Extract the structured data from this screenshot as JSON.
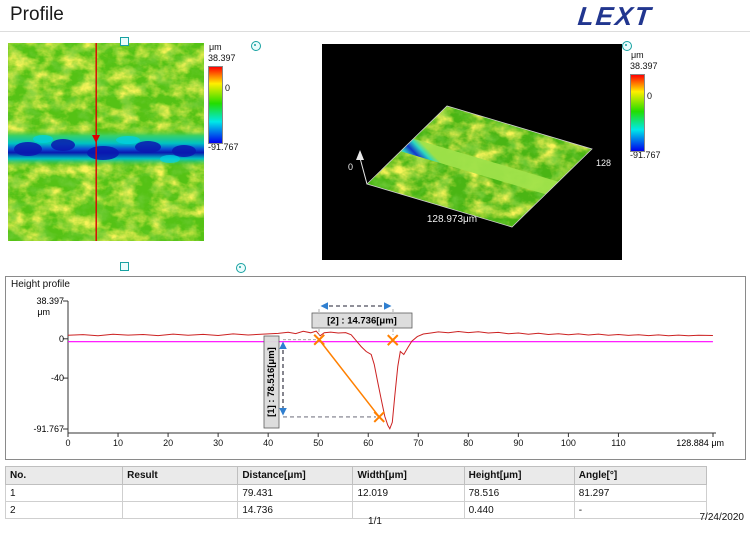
{
  "header": {
    "title": "Profile",
    "logo": "LEXT"
  },
  "colorbar2d": {
    "unit": "μm",
    "max": "38.397",
    "zero": "0",
    "min": "-91.767"
  },
  "colorbar3d": {
    "unit": "μm",
    "max": "38.397",
    "zero": "0",
    "min": "-91.767"
  },
  "view3d": {
    "axis_origin": "0",
    "axis_right": "128",
    "axis_bottom": "128.973μm"
  },
  "chart": {
    "title": "Height profile",
    "y_max": "38.397",
    "y_unit": "μm",
    "y_zero": "0",
    "y_mid": "-40",
    "y_min": "-91.767",
    "x_end": "128.884 μm",
    "measure1": "[1] : 78.516[μm]",
    "measure2": "[2] : 14.736[μm]"
  },
  "chart_data": {
    "type": "line",
    "title": "Height profile",
    "ylabel": "μm",
    "ylim": [
      -91.767,
      38.397
    ],
    "xlim": [
      0,
      128.884
    ],
    "x_ticks": [
      0,
      10,
      20,
      30,
      40,
      50,
      60,
      70,
      80,
      90,
      100,
      110
    ],
    "x_end_value": 128.884,
    "grid": false,
    "series": [
      {
        "name": "height-profile",
        "color": "#cc2222",
        "points": [
          [
            0,
            3.5
          ],
          [
            3,
            4.2
          ],
          [
            6,
            3.1
          ],
          [
            9,
            4.6
          ],
          [
            12,
            3.7
          ],
          [
            15,
            4.3
          ],
          [
            18,
            3.2
          ],
          [
            21,
            4.7
          ],
          [
            24,
            3.5
          ],
          [
            27,
            4.4
          ],
          [
            30,
            3.3
          ],
          [
            33,
            4.9
          ],
          [
            36,
            3.8
          ],
          [
            39,
            4.7
          ],
          [
            42,
            5.4
          ],
          [
            44,
            6.6
          ],
          [
            45.5,
            5.2
          ],
          [
            47,
            7.6
          ],
          [
            48.5,
            6.1
          ],
          [
            49.6,
            7.8
          ],
          [
            50.4,
            3.0
          ],
          [
            51.2,
            6.2
          ],
          [
            52.5,
            6.8
          ],
          [
            54,
            5.9
          ],
          [
            55.5,
            6.3
          ],
          [
            56.6,
            4.0
          ],
          [
            57.6,
            -2
          ],
          [
            58.6,
            -8
          ],
          [
            59.6,
            -13
          ],
          [
            60.6,
            -16
          ],
          [
            61.2,
            -26
          ],
          [
            61.9,
            -44
          ],
          [
            62.6,
            -62
          ],
          [
            63.3,
            -79
          ],
          [
            63.9,
            -88
          ],
          [
            64.3,
            -91.5
          ],
          [
            64.8,
            -85
          ],
          [
            65.3,
            -58
          ],
          [
            65.9,
            -28
          ],
          [
            66.4,
            -13
          ],
          [
            67.1,
            -16
          ],
          [
            67.9,
            -9
          ],
          [
            68.7,
            -2.5
          ],
          [
            69.8,
            2.2
          ],
          [
            71,
            4.8
          ],
          [
            72.5,
            5.9
          ],
          [
            74,
            7
          ],
          [
            76,
            6.1
          ],
          [
            78,
            7.4
          ],
          [
            80,
            6.3
          ],
          [
            82,
            7.1
          ],
          [
            84,
            5.9
          ],
          [
            86,
            6.5
          ],
          [
            88,
            5.1
          ],
          [
            90,
            5.9
          ],
          [
            92,
            4.6
          ],
          [
            94,
            5.5
          ],
          [
            96,
            4.3
          ],
          [
            98,
            5.1
          ],
          [
            100,
            4.1
          ],
          [
            102,
            4.9
          ],
          [
            104,
            3.8
          ],
          [
            106,
            4.7
          ],
          [
            108,
            3.6
          ],
          [
            110,
            4.3
          ],
          [
            112,
            3.4
          ],
          [
            114,
            4.1
          ],
          [
            116,
            3.2
          ],
          [
            118,
            3.9
          ],
          [
            120,
            3.1
          ],
          [
            122,
            3.7
          ],
          [
            124,
            3.0
          ],
          [
            126,
            3.5
          ],
          [
            128.884,
            3.3
          ]
        ]
      },
      {
        "name": "reference-line",
        "color": "#ff00ff",
        "points": [
          [
            0,
            -3
          ],
          [
            128.884,
            -3
          ]
        ]
      }
    ],
    "markers": [
      {
        "x": 50.2,
        "y": -1.0
      },
      {
        "x": 64.9,
        "y": -1.4
      },
      {
        "x": 62.2,
        "y": -79.5
      }
    ],
    "measurements": [
      {
        "id": 1,
        "label": "[1] : 78.516[μm]",
        "distance": 79.431,
        "width": 12.019,
        "height": 78.516,
        "angle": 81.297
      },
      {
        "id": 2,
        "label": "[2] : 14.736[μm]",
        "distance": 14.736,
        "height": 0.44
      }
    ]
  },
  "table": {
    "headers": [
      "No.",
      "Result",
      "Distance[μm]",
      "Width[μm]",
      "Height[μm]",
      "Angle[°]"
    ],
    "rows": [
      [
        "1",
        "",
        "79.431",
        "12.019",
        "78.516",
        "81.297"
      ],
      [
        "2",
        "",
        "14.736",
        "",
        "0.440",
        "-"
      ]
    ]
  },
  "footer": {
    "page": "1/1",
    "date": "7/24/2020"
  }
}
